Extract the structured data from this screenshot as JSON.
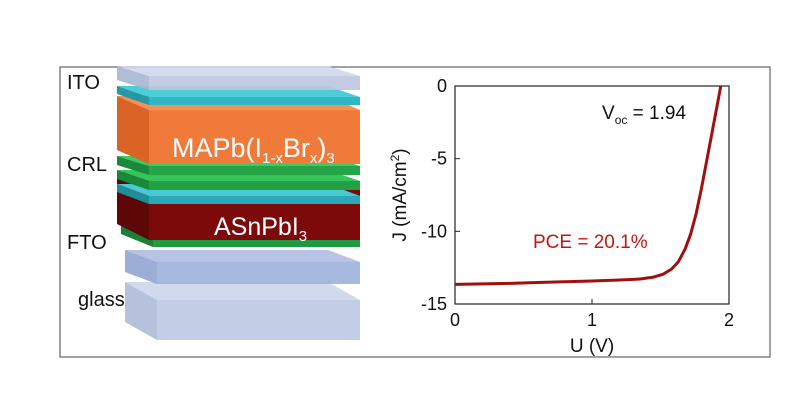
{
  "stack": {
    "labels": {
      "ito": "ITO",
      "crl": "CRL",
      "fto": "FTO",
      "glass": "glass"
    },
    "top_absorber": {
      "base": "MAPb(I",
      "sub1": "1-x",
      "mid": "Br",
      "sub2": "x",
      "close": ")",
      "sub3": "3"
    },
    "bottom_absorber": {
      "base": "ASnPbI",
      "sub": "3"
    },
    "colors": {
      "ito": "#bcc6df",
      "cyan": "#2fb7c4",
      "orange": "#f07a3a",
      "green": "#26a84a",
      "maroon": "#7d0a0a",
      "glass": "#b8c4e0"
    }
  },
  "chart_data": {
    "type": "line",
    "xlabel": "U (V)",
    "ylabel": "J (mA/cm",
    "ylabel_sup": "2",
    "ylabel_close": ")",
    "xlim": [
      0,
      2
    ],
    "ylim": [
      -15,
      0
    ],
    "xticks": [
      "0",
      "1",
      "2"
    ],
    "yticks": [
      "0",
      "-5",
      "-10",
      "-15"
    ],
    "series": [
      {
        "color": "#a01010",
        "x": [
          0,
          0.2,
          0.4,
          0.6,
          0.8,
          1.0,
          1.2,
          1.35,
          1.45,
          1.52,
          1.58,
          1.63,
          1.68,
          1.72,
          1.76,
          1.8,
          1.84,
          1.88,
          1.91,
          1.94
        ],
        "y": [
          -13.65,
          -13.62,
          -13.58,
          -13.52,
          -13.47,
          -13.42,
          -13.35,
          -13.28,
          -13.15,
          -12.95,
          -12.6,
          -12.1,
          -11.2,
          -10.2,
          -8.8,
          -7.0,
          -5.0,
          -3.0,
          -1.5,
          0
        ]
      }
    ],
    "annotations": {
      "voc_label": "V",
      "voc_sub": "oc",
      "voc_value": " = 1.94",
      "pce": "PCE = 20.1%"
    }
  }
}
